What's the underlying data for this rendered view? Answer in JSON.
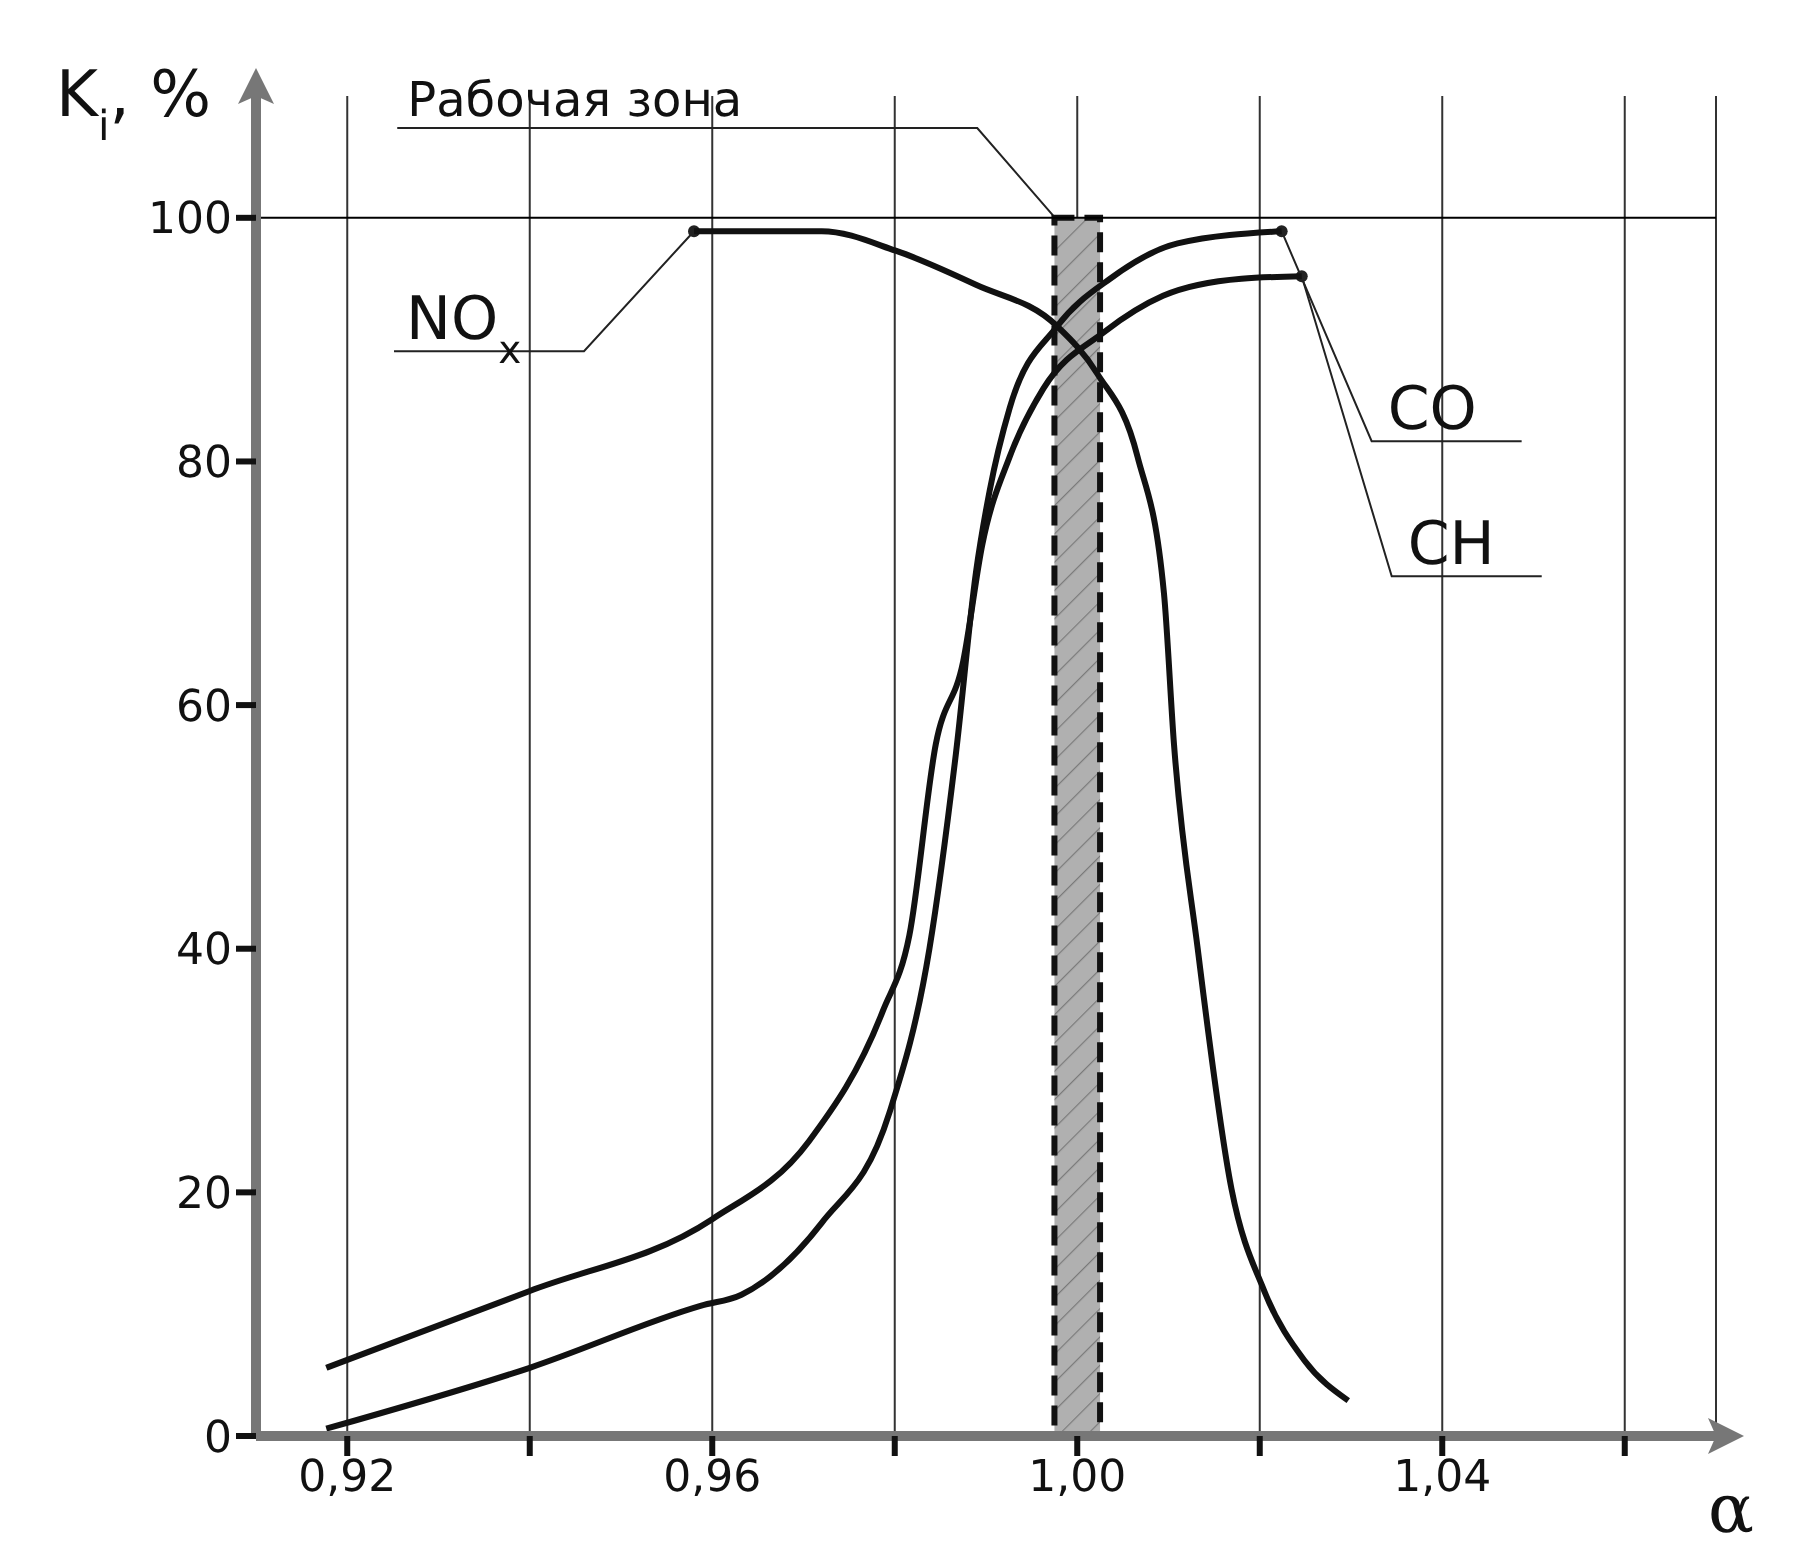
{
  "chart_data": {
    "type": "line",
    "ylabel": "K$_{i}$, %",
    "xlabel": "α",
    "xlim": [
      0.91,
      1.07
    ],
    "ylim": [
      0,
      110
    ],
    "xticks": [
      {
        "value": 0.92,
        "label": "0,92"
      },
      {
        "value": 0.94,
        "label": null
      },
      {
        "value": 0.96,
        "label": "0,96"
      },
      {
        "value": 0.98,
        "label": null
      },
      {
        "value": 1.0,
        "label": "1,00"
      },
      {
        "value": 1.02,
        "label": null
      },
      {
        "value": 1.04,
        "label": "1,04"
      },
      {
        "value": 1.06,
        "label": null
      }
    ],
    "yticks": [
      0,
      20,
      40,
      60,
      80,
      100
    ],
    "grid": "x",
    "ref_lines": [
      {
        "axis": "y",
        "value": 100,
        "color": "#000000"
      }
    ],
    "bands": [
      {
        "axis": "x",
        "from": 0.9975,
        "to": 1.0025,
        "label": "Рабочая зона",
        "color": "#b0b0b0"
      }
    ],
    "series": [
      {
        "name": "NO$_{x}$",
        "color": "#111111",
        "x": [
          0.958,
          0.972,
          0.9801,
          0.9889,
          0.9978,
          1.0022,
          1.0066,
          1.0095,
          1.0106,
          1.0132,
          1.0169,
          1.0205,
          1.0249,
          1.0297
        ],
        "values": [
          98.9,
          98.9,
          97.3,
          94.5,
          91.1,
          87.2,
          80.4,
          69.2,
          56.8,
          40,
          20.3,
          11.9,
          6.2,
          2.9
        ]
      },
      {
        "name": "CO",
        "color": "#111111",
        "x": [
          0.9177,
          0.94,
          0.9588,
          0.9632,
          0.972,
          0.9794,
          0.9838,
          0.9867,
          0.9889,
          0.9904,
          0.9926,
          0.9978,
          1.0036,
          1.011,
          1.0224
        ],
        "values": [
          0.6,
          5.6,
          10.7,
          11.6,
          17.5,
          26.5,
          40,
          56,
          70.9,
          77.6,
          84.4,
          91.1,
          95,
          97.9,
          98.9
        ]
      },
      {
        "name": "CH",
        "color": "#111111",
        "x": [
          0.9177,
          0.94,
          0.96,
          0.9706,
          0.9787,
          0.9816,
          0.9845,
          0.9875,
          0.9896,
          0.9926,
          0.9963,
          1.0029,
          1.0094,
          1.018,
          1.0246
        ],
        "values": [
          5.6,
          11.9,
          17.8,
          24.2,
          34.9,
          41.1,
          56.8,
          63.6,
          73.2,
          80.4,
          86,
          90.6,
          93.6,
          95,
          95.2
        ]
      }
    ]
  }
}
